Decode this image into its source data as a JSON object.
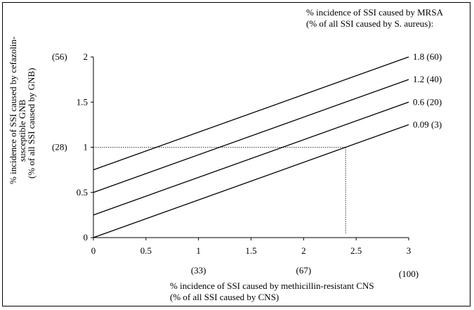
{
  "chart_data": {
    "type": "line",
    "xlabel": [
      "% incidence of SSI caused by methicillin-resistant CNS",
      "(% of all SSI caused by CNS)"
    ],
    "ylabel": [
      "% incidence of SSI caused by cefazolin-",
      "susceptible GNB",
      "(% of all SSI caused by GNB)"
    ],
    "legend_title": [
      "% incidence of SSI caused by MRSA",
      "(% of all SSI caused by S. aureus):"
    ],
    "xlim": [
      0,
      3
    ],
    "ylim": [
      0,
      2
    ],
    "x_ticks": [
      "0",
      "0.5",
      "1",
      "1.5",
      "2",
      "2.5",
      "3"
    ],
    "y_ticks": [
      "0",
      "0.5",
      "1",
      "1.5",
      "2"
    ],
    "x_secondary_ticks": [
      {
        "x": 1,
        "label": "(33)"
      },
      {
        "x": 2,
        "label": "(67)"
      },
      {
        "x": 3,
        "label": "(100)"
      }
    ],
    "y_secondary_ticks": [
      {
        "y": 1,
        "label": "(28)"
      },
      {
        "y": 2,
        "label": "(56)"
      }
    ],
    "series": [
      {
        "name": "1.8 (60)",
        "x": [
          0,
          3
        ],
        "y": [
          0.75,
          2.0
        ]
      },
      {
        "name": "1.2 (40)",
        "x": [
          0,
          3
        ],
        "y": [
          0.5,
          1.75
        ]
      },
      {
        "name": "0.6 (20)",
        "x": [
          0,
          3
        ],
        "y": [
          0.25,
          1.5
        ]
      },
      {
        "name": "0.09 (3)",
        "x": [
          0,
          3
        ],
        "y": [
          0.0,
          1.25
        ]
      }
    ],
    "reference_point": {
      "x": 2.4,
      "y": 1.0
    },
    "grid": false
  }
}
